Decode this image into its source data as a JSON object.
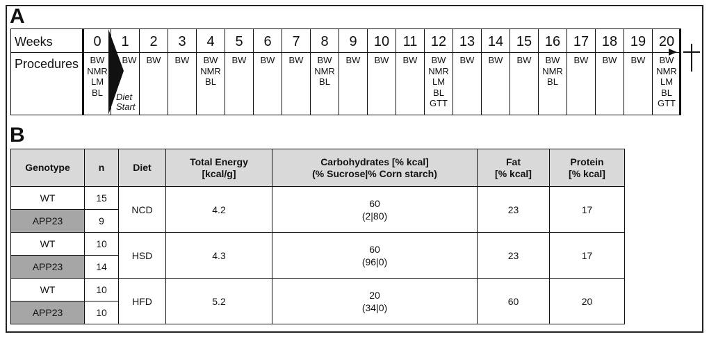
{
  "panels": {
    "a": "A",
    "b": "B"
  },
  "timeline": {
    "row_labels": {
      "weeks": "Weeks",
      "procedures": "Procedures"
    },
    "weeks": [
      "0",
      "1",
      "2",
      "3",
      "4",
      "5",
      "6",
      "7",
      "8",
      "9",
      "10",
      "11",
      "12",
      "13",
      "14",
      "15",
      "16",
      "17",
      "18",
      "19",
      "20"
    ],
    "procedures": [
      [
        "BW",
        "NMR",
        "LM",
        "BL"
      ],
      [
        "BW"
      ],
      [
        "BW"
      ],
      [
        "BW"
      ],
      [
        "BW",
        "NMR",
        "BL"
      ],
      [
        "BW"
      ],
      [
        "BW"
      ],
      [
        "BW"
      ],
      [
        "BW",
        "NMR",
        "BL"
      ],
      [
        "BW"
      ],
      [
        "BW"
      ],
      [
        "BW"
      ],
      [
        "BW",
        "NMR",
        "LM",
        "BL",
        "GTT"
      ],
      [
        "BW"
      ],
      [
        "BW"
      ],
      [
        "BW"
      ],
      [
        "BW",
        "NMR",
        "BL"
      ],
      [
        "BW"
      ],
      [
        "BW"
      ],
      [
        "BW"
      ],
      [
        "BW",
        "NMR",
        "LM",
        "BL",
        "GTT"
      ]
    ],
    "diet_start": [
      "Diet",
      "Start"
    ]
  },
  "table": {
    "headers": {
      "genotype": "Genotype",
      "n": "n",
      "diet": "Diet",
      "energy": [
        "Total Energy",
        "[kcal/g]"
      ],
      "carbs": [
        "Carbohydrates  [% kcal]",
        "(% Sucrose|% Corn starch)"
      ],
      "fat": [
        "Fat",
        "[% kcal]"
      ],
      "protein": [
        "Protein",
        "[% kcal]"
      ]
    },
    "groups": [
      {
        "diet": "NCD",
        "energy": "4.2",
        "carbs": "60",
        "carbs_split": "(2|80)",
        "fat": "23",
        "protein": "17",
        "rows": [
          {
            "genotype": "WT",
            "n": "15"
          },
          {
            "genotype": "APP23",
            "n": "9"
          }
        ]
      },
      {
        "diet": "HSD",
        "energy": "4.3",
        "carbs": "60",
        "carbs_split": "(96|0)",
        "fat": "23",
        "protein": "17",
        "rows": [
          {
            "genotype": "WT",
            "n": "10"
          },
          {
            "genotype": "APP23",
            "n": "14"
          }
        ]
      },
      {
        "diet": "HFD",
        "energy": "5.2",
        "carbs": "20",
        "carbs_split": "(34|0)",
        "fat": "60",
        "protein": "20",
        "rows": [
          {
            "genotype": "WT",
            "n": "10"
          },
          {
            "genotype": "APP23",
            "n": "10"
          }
        ]
      }
    ]
  }
}
